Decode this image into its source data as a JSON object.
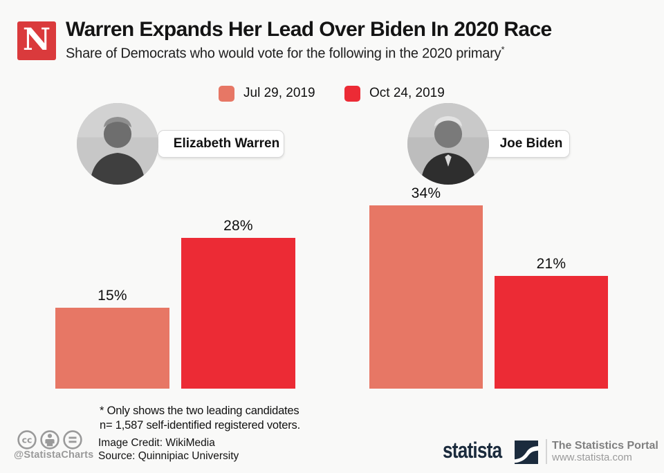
{
  "branding": {
    "newsweek_letter": "N",
    "newsweek_color": "#da3a3c"
  },
  "header": {
    "title": "Warren Expands Her Lead Over Biden In 2020 Race",
    "subtitle": "Share of Democrats who would vote for the following in the 2020 primary",
    "footnote_marker": "*"
  },
  "legend": [
    {
      "label": "Jul 29, 2019",
      "color": "#e77765"
    },
    {
      "label": "Oct 24, 2019",
      "color": "#ec2b35"
    }
  ],
  "chart_data": {
    "type": "bar",
    "title": "Warren Expands Her Lead Over Biden In 2020 Race",
    "subtitle": "Share of Democrats who would vote for the following in the 2020 primary*",
    "categories": [
      "Elizabeth Warren",
      "Joe Biden"
    ],
    "series": [
      {
        "name": "Jul 29, 2019",
        "color": "#e77765",
        "values": [
          15,
          34
        ]
      },
      {
        "name": "Oct 24, 2019",
        "color": "#ec2b35",
        "values": [
          28,
          21
        ]
      }
    ],
    "unit": "%",
    "ylim": [
      0,
      36
    ],
    "grid": false,
    "legend_position": "top",
    "value_labels_shown": true
  },
  "candidates": [
    {
      "name": "Elizabeth Warren"
    },
    {
      "name": "Joe Biden"
    }
  ],
  "footnote": {
    "line1": "* Only shows the two leading candidates",
    "line2": "n= 1,587 self-identified registered voters."
  },
  "credits": {
    "handle": "@StatistaCharts",
    "image_credit": "Image Credit: WikiMedia",
    "source": "Source: Quinnipiac University"
  },
  "statista": {
    "wordmark": "statista",
    "tagline": "The Statistics Portal",
    "url": "www.statista.com",
    "navy": "#1b2b3d"
  }
}
